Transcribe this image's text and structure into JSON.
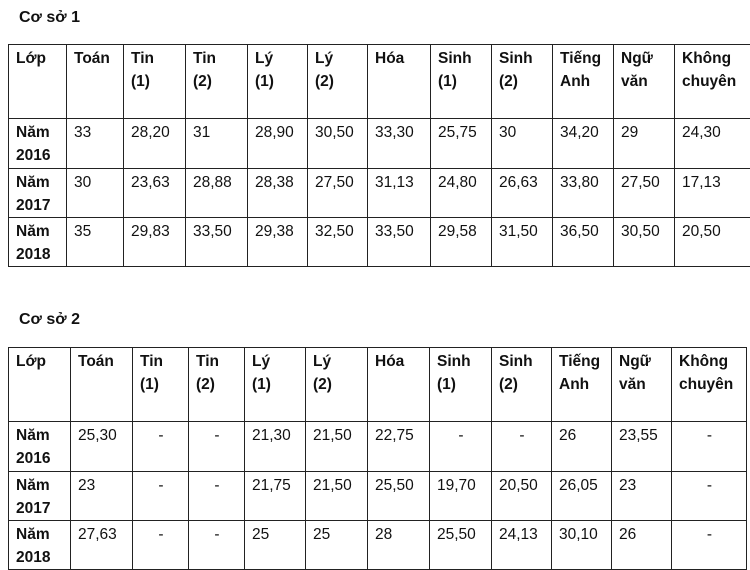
{
  "section1": {
    "title": "Cơ sở 1",
    "headers": [
      [
        "Lớp"
      ],
      [
        "Toán"
      ],
      [
        "Tin",
        "(1)"
      ],
      [
        "Tin",
        "(2)"
      ],
      [
        "Lý",
        "(1)"
      ],
      [
        "Lý",
        "(2)"
      ],
      [
        "Hóa"
      ],
      [
        "Sinh",
        "(1)"
      ],
      [
        "Sinh",
        "(2)"
      ],
      [
        "Tiếng",
        "Anh"
      ],
      [
        "Ngữ",
        "văn"
      ],
      [
        "Không",
        "chuyên"
      ]
    ],
    "rows": [
      {
        "label": [
          "Năm",
          "2016"
        ],
        "values": [
          "33",
          "28,20",
          "31",
          "28,90",
          "30,50",
          "33,30",
          "25,75",
          "30",
          "34,20",
          "29",
          "24,30"
        ]
      },
      {
        "label": [
          "Năm",
          "2017"
        ],
        "values": [
          "30",
          "23,63",
          "28,88",
          "28,38",
          "27,50",
          "31,13",
          "24,80",
          "26,63",
          "33,80",
          "27,50",
          "17,13"
        ]
      },
      {
        "label": [
          "Năm",
          "2018"
        ],
        "values": [
          "35",
          "29,83",
          "33,50",
          "29,38",
          "32,50",
          "33,50",
          "29,58",
          "31,50",
          "36,50",
          "30,50",
          "20,50"
        ]
      }
    ]
  },
  "section2": {
    "title": "Cơ sở 2",
    "headers": [
      [
        "Lớp"
      ],
      [
        "Toán"
      ],
      [
        "Tin",
        "(1)"
      ],
      [
        "Tin",
        "(2)"
      ],
      [
        "Lý",
        "(1)"
      ],
      [
        "Lý",
        "(2)"
      ],
      [
        "Hóa"
      ],
      [
        "Sinh",
        "(1)"
      ],
      [
        "Sinh",
        "(2)"
      ],
      [
        "Tiếng",
        "Anh"
      ],
      [
        "Ngữ",
        "văn"
      ],
      [
        "Không",
        "chuyên"
      ]
    ],
    "rows": [
      {
        "label": [
          "Năm",
          "2016"
        ],
        "values": [
          "25,30",
          "-",
          "-",
          "21,30",
          "21,50",
          "22,75",
          "-",
          "-",
          "26",
          "23,55",
          "-"
        ]
      },
      {
        "label": [
          "Năm",
          "2017"
        ],
        "values": [
          "23",
          "-",
          "-",
          "21,75",
          "21,50",
          "25,50",
          "19,70",
          "20,50",
          "26,05",
          "23",
          "-"
        ]
      },
      {
        "label": [
          "Năm",
          "2018"
        ],
        "values": [
          "27,63",
          "-",
          "-",
          "25",
          "25",
          "28",
          "25,50",
          "24,13",
          "30,10",
          "26",
          "-"
        ]
      }
    ]
  }
}
